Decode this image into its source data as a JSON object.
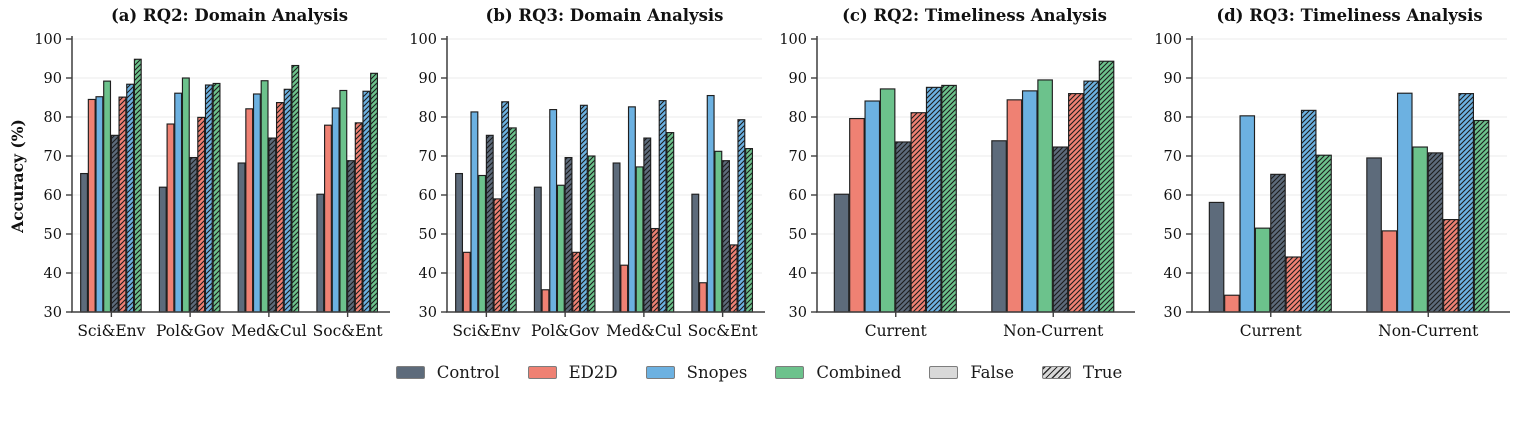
{
  "figure": {
    "ylabel": "Accuracy (%)",
    "background": "#ffffff",
    "axis_color": "#3f3f3f",
    "grid_color": "#ebebeb",
    "edge_color": "#1f1f1f",
    "text_color": "#111111",
    "false_swatch_color": "#d9d9d9",
    "colors": {
      "Control": "#5d6b7b",
      "ED2D": "#ef8173",
      "Snopes": "#6cb1e1",
      "Combined": "#6cc28c"
    }
  },
  "legend": {
    "items": [
      {
        "label": "Control",
        "color": "#5d6b7b",
        "hatch": false
      },
      {
        "label": "ED2D",
        "color": "#ef8173",
        "hatch": false
      },
      {
        "label": "Snopes",
        "color": "#6cb1e1",
        "hatch": false
      },
      {
        "label": "Combined",
        "color": "#6cc28c",
        "hatch": false
      },
      {
        "label": "False",
        "color": "#d9d9d9",
        "hatch": false
      },
      {
        "label": "True",
        "color": "#d9d9d9",
        "hatch": true
      }
    ]
  },
  "chart_data": [
    {
      "type": "bar",
      "title": "(a) RQ2: Domain Analysis",
      "xlabel": "",
      "ylabel": "Accuracy (%)",
      "ylim": [
        30,
        100
      ],
      "yticks": [
        30,
        40,
        50,
        60,
        70,
        80,
        90,
        100
      ],
      "grid": true,
      "legend_position": "bottom-center",
      "categories": [
        "Sci&Env",
        "Pol&Gov",
        "Med&Cul",
        "Soc&Ent"
      ],
      "series": [
        {
          "name": "Control",
          "variant": "False",
          "values": [
            65.5,
            62.0,
            68.2,
            60.2
          ]
        },
        {
          "name": "ED2D",
          "variant": "False",
          "values": [
            84.5,
            78.2,
            82.1,
            77.9
          ]
        },
        {
          "name": "Snopes",
          "variant": "False",
          "values": [
            85.2,
            86.1,
            85.9,
            82.3
          ]
        },
        {
          "name": "Combined",
          "variant": "False",
          "values": [
            89.2,
            90.0,
            89.3,
            86.8
          ]
        },
        {
          "name": "Control",
          "variant": "True",
          "values": [
            75.3,
            69.6,
            74.6,
            68.8
          ]
        },
        {
          "name": "ED2D",
          "variant": "True",
          "values": [
            85.1,
            79.9,
            83.7,
            78.5
          ]
        },
        {
          "name": "Snopes",
          "variant": "True",
          "values": [
            88.4,
            88.2,
            87.1,
            86.6
          ]
        },
        {
          "name": "Combined",
          "variant": "True",
          "values": [
            94.8,
            88.6,
            93.2,
            91.2
          ]
        }
      ]
    },
    {
      "type": "bar",
      "title": "(b) RQ3: Domain Analysis",
      "xlabel": "",
      "ylabel": "Accuracy (%)",
      "ylim": [
        30,
        100
      ],
      "yticks": [
        30,
        40,
        50,
        60,
        70,
        80,
        90,
        100
      ],
      "grid": true,
      "categories": [
        "Sci&Env",
        "Pol&Gov",
        "Med&Cul",
        "Soc&Ent"
      ],
      "series": [
        {
          "name": "Control",
          "variant": "False",
          "values": [
            65.5,
            62.0,
            68.2,
            60.2
          ]
        },
        {
          "name": "ED2D",
          "variant": "False",
          "values": [
            45.3,
            35.7,
            42.0,
            37.5
          ]
        },
        {
          "name": "Snopes",
          "variant": "False",
          "values": [
            81.3,
            81.9,
            82.6,
            85.5
          ]
        },
        {
          "name": "Combined",
          "variant": "False",
          "values": [
            65.0,
            62.5,
            67.2,
            71.2
          ]
        },
        {
          "name": "Control",
          "variant": "True",
          "values": [
            75.3,
            69.6,
            74.6,
            68.8
          ]
        },
        {
          "name": "ED2D",
          "variant": "True",
          "values": [
            59.0,
            45.3,
            51.4,
            47.2
          ]
        },
        {
          "name": "Snopes",
          "variant": "True",
          "values": [
            83.9,
            83.0,
            84.2,
            79.3
          ]
        },
        {
          "name": "Combined",
          "variant": "True",
          "values": [
            77.2,
            70.0,
            76.0,
            71.9
          ]
        }
      ]
    },
    {
      "type": "bar",
      "title": "(c) RQ2: Timeliness Analysis",
      "xlabel": "",
      "ylabel": "Accuracy (%)",
      "ylim": [
        30,
        100
      ],
      "yticks": [
        30,
        40,
        50,
        60,
        70,
        80,
        90,
        100
      ],
      "grid": true,
      "categories": [
        "Current",
        "Non-Current"
      ],
      "series": [
        {
          "name": "Control",
          "variant": "False",
          "values": [
            60.2,
            73.9
          ]
        },
        {
          "name": "ED2D",
          "variant": "False",
          "values": [
            79.6,
            84.4
          ]
        },
        {
          "name": "Snopes",
          "variant": "False",
          "values": [
            84.1,
            86.7
          ]
        },
        {
          "name": "Combined",
          "variant": "False",
          "values": [
            87.2,
            89.5
          ]
        },
        {
          "name": "Control",
          "variant": "True",
          "values": [
            73.6,
            72.3
          ]
        },
        {
          "name": "ED2D",
          "variant": "True",
          "values": [
            81.1,
            86.0
          ]
        },
        {
          "name": "Snopes",
          "variant": "True",
          "values": [
            87.6,
            89.2
          ]
        },
        {
          "name": "Combined",
          "variant": "True",
          "values": [
            88.1,
            94.3
          ]
        }
      ]
    },
    {
      "type": "bar",
      "title": "(d) RQ3: Timeliness Analysis",
      "xlabel": "",
      "ylabel": "Accuracy (%)",
      "ylim": [
        30,
        100
      ],
      "yticks": [
        30,
        40,
        50,
        60,
        70,
        80,
        90,
        100
      ],
      "grid": true,
      "categories": [
        "Current",
        "Non-Current"
      ],
      "series": [
        {
          "name": "Control",
          "variant": "False",
          "values": [
            58.1,
            69.5
          ]
        },
        {
          "name": "ED2D",
          "variant": "False",
          "values": [
            34.3,
            50.8
          ]
        },
        {
          "name": "Snopes",
          "variant": "False",
          "values": [
            80.3,
            86.1
          ]
        },
        {
          "name": "Combined",
          "variant": "False",
          "values": [
            51.5,
            72.3
          ]
        },
        {
          "name": "Control",
          "variant": "True",
          "values": [
            65.3,
            70.8
          ]
        },
        {
          "name": "ED2D",
          "variant": "True",
          "values": [
            44.1,
            53.7
          ]
        },
        {
          "name": "Snopes",
          "variant": "True",
          "values": [
            81.7,
            86.0
          ]
        },
        {
          "name": "Combined",
          "variant": "True",
          "values": [
            70.2,
            79.1
          ]
        }
      ]
    }
  ]
}
